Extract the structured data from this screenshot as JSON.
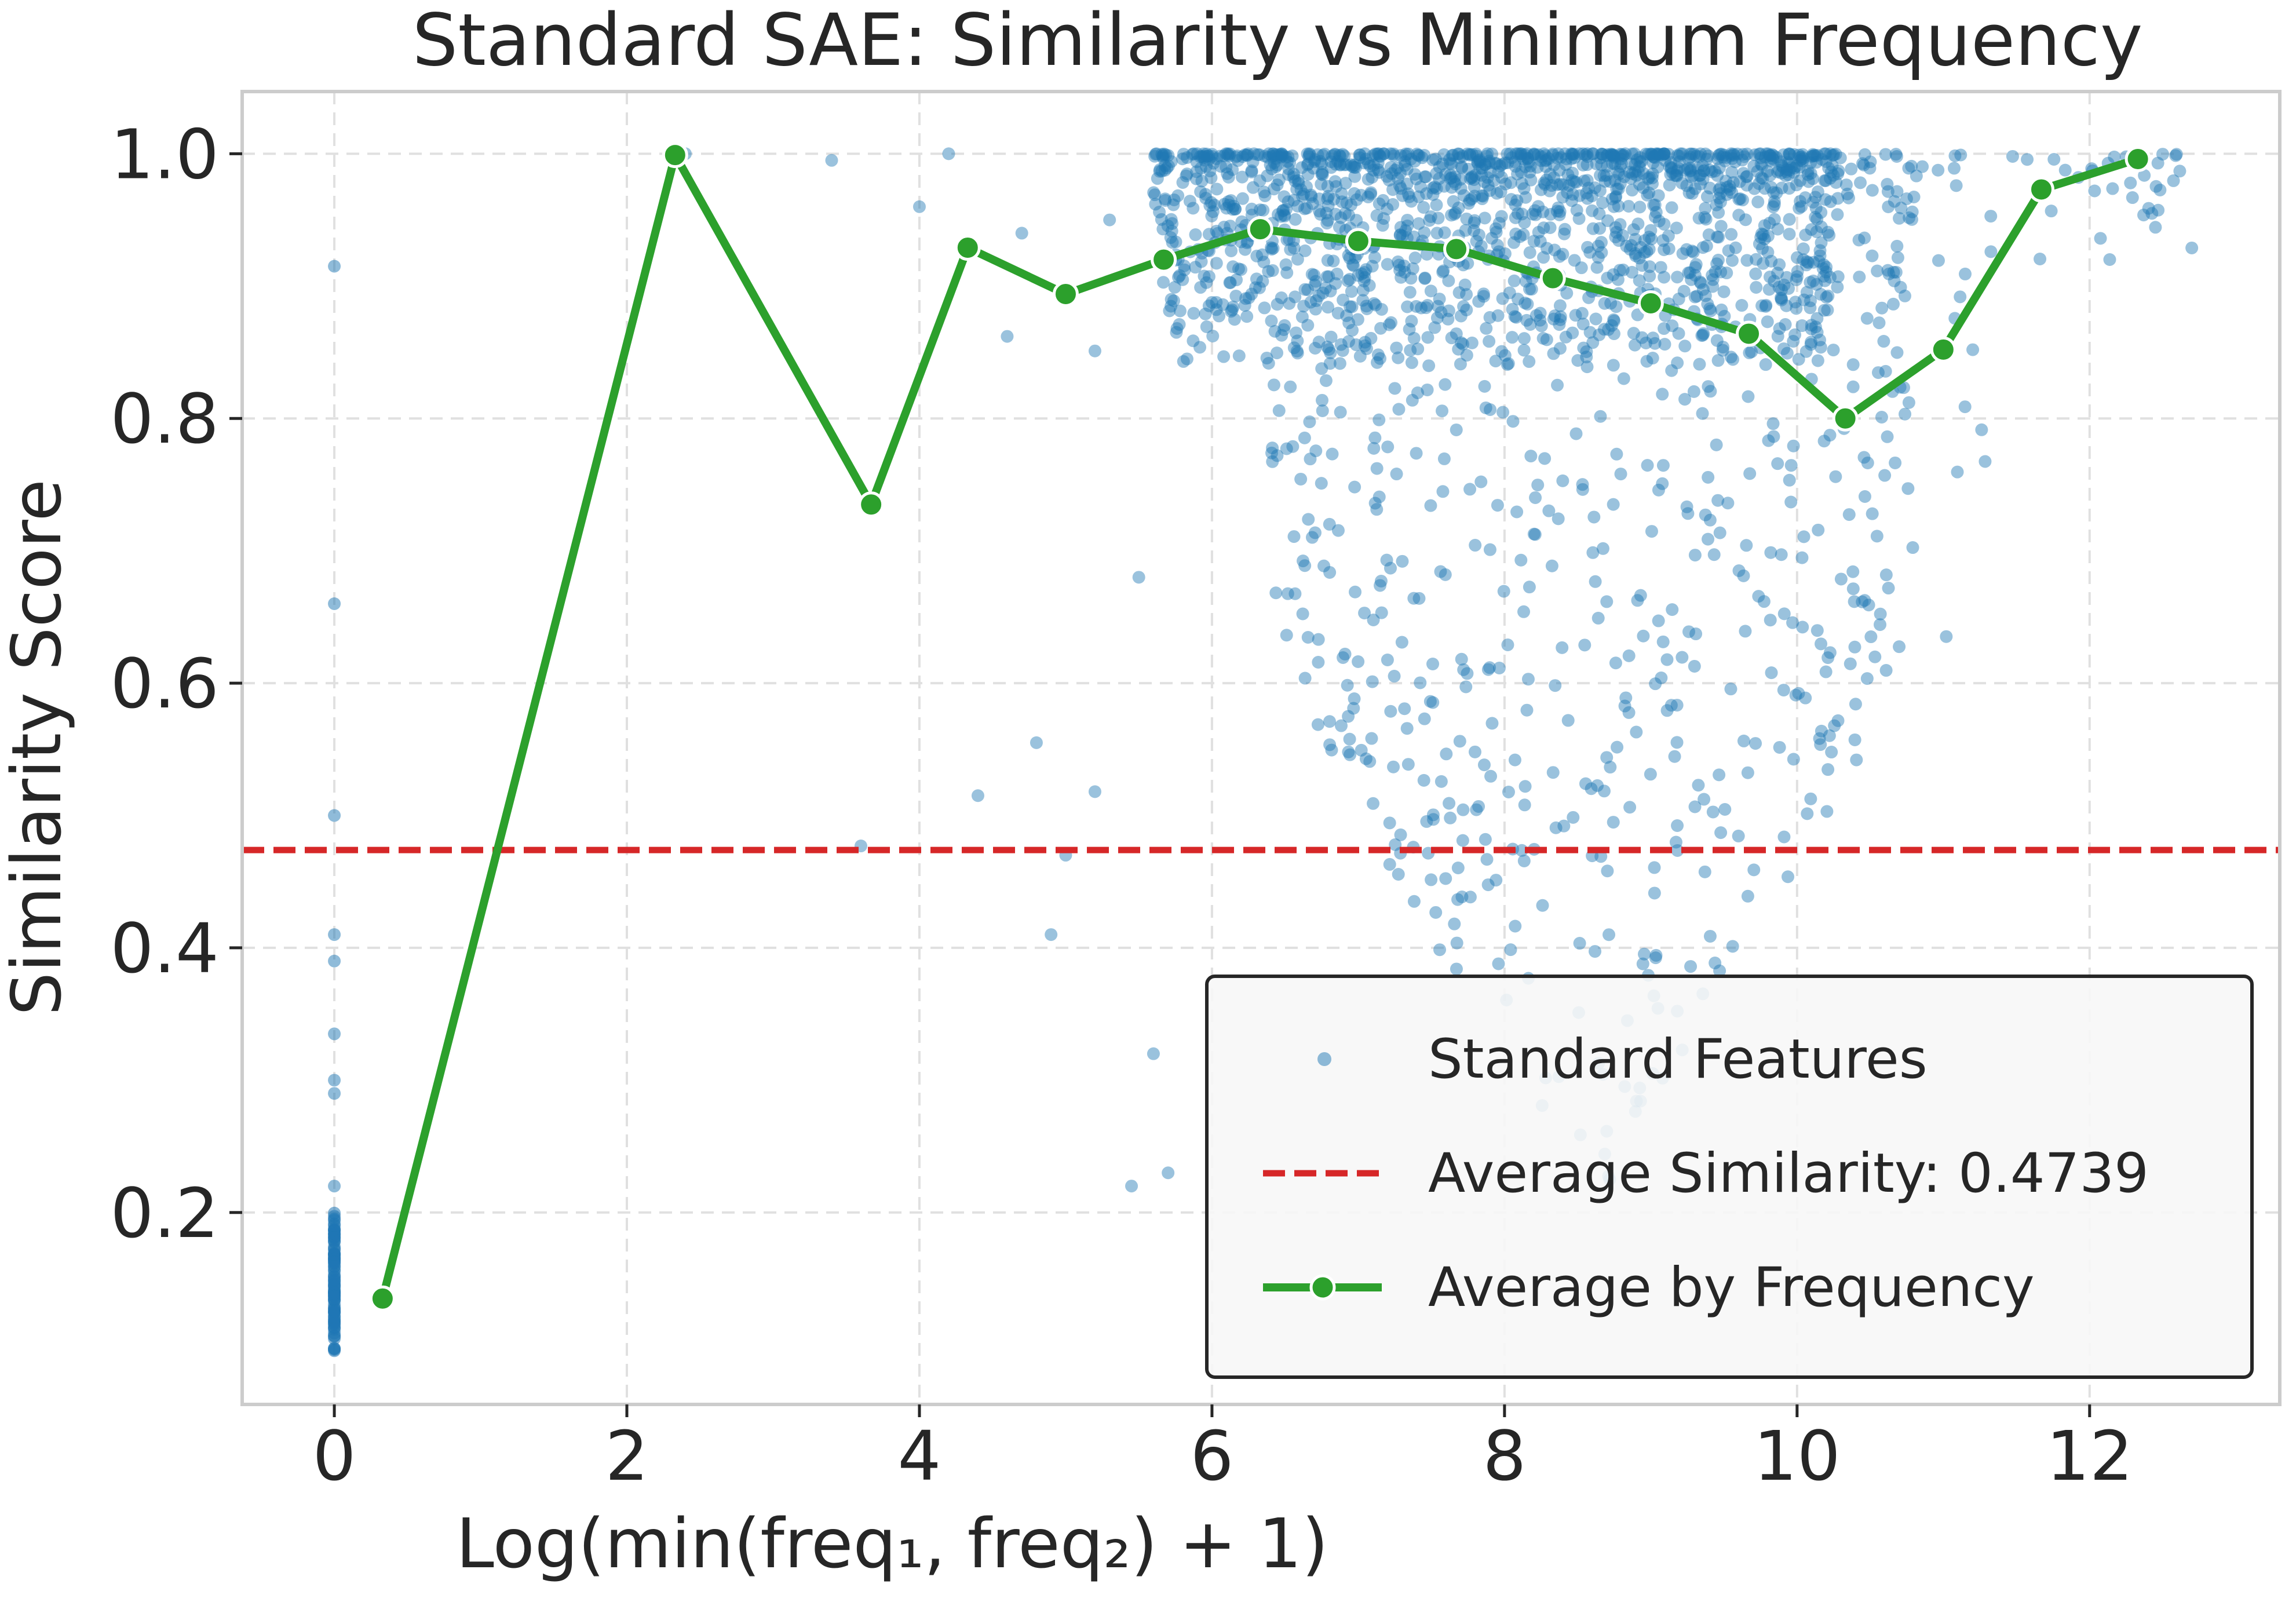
{
  "chart_data": {
    "type": "scatter",
    "title": "Standard SAE: Similarity vs Minimum Frequency",
    "xlabel": "Log(min(freq₁, freq₂) + 1)",
    "ylabel": "Similarity Score",
    "xlim": [
      -0.63,
      13.3
    ],
    "ylim": [
      0.055,
      1.047
    ],
    "xticks": [
      0,
      2,
      4,
      6,
      8,
      10,
      12
    ],
    "xtick_labels": [
      "0",
      "2",
      "4",
      "6",
      "8",
      "10",
      "12"
    ],
    "yticks": [
      0.2,
      0.4,
      0.6,
      0.8,
      1.0
    ],
    "ytick_labels": [
      "0.2",
      "0.4",
      "0.6",
      "0.8",
      "1.0"
    ],
    "grid": true,
    "legend_position": "lower-right",
    "average_similarity": 0.4739,
    "series": [
      {
        "name": "Standard Features",
        "kind": "scatter",
        "note": "approximately 10,000 points, dense band near similarity 1.0 for x between 6 and 10, spreading down to about 0.15 as x increases; a vertical cluster at x = 0 between 0.1 and 0.2",
        "zero_cluster": {
          "x": 0,
          "y_min": 0.095,
          "y_max": 0.2
        },
        "zero_outliers": [
          0.915,
          0.66,
          0.5,
          0.41,
          0.39,
          0.335,
          0.3,
          0.29,
          0.22
        ],
        "sparse_points": [
          [
            2.4,
            1.0
          ],
          [
            3.4,
            0.995
          ],
          [
            3.6,
            0.477
          ],
          [
            4.0,
            0.96
          ],
          [
            4.2,
            1.0
          ],
          [
            4.4,
            0.515
          ],
          [
            4.6,
            0.862
          ],
          [
            4.8,
            0.555
          ],
          [
            4.9,
            0.41
          ],
          [
            5.0,
            0.47
          ],
          [
            5.2,
            0.518
          ],
          [
            5.2,
            0.851
          ],
          [
            5.45,
            0.22
          ],
          [
            5.5,
            0.68
          ],
          [
            5.6,
            0.32
          ],
          [
            5.7,
            0.23
          ],
          [
            5.3,
            0.95
          ],
          [
            4.7,
            0.94
          ]
        ]
      },
      {
        "name": "Average Similarity: 0.4739",
        "kind": "hline",
        "y": 0.4739
      },
      {
        "name": "Average by Frequency",
        "kind": "line",
        "x": [
          0.33,
          2.33,
          3.67,
          4.33,
          5.0,
          5.67,
          6.33,
          7.0,
          7.67,
          8.33,
          9.0,
          9.67,
          10.33,
          11.0,
          11.67,
          12.33
        ],
        "values": [
          0.135,
          0.999,
          0.735,
          0.929,
          0.894,
          0.92,
          0.943,
          0.934,
          0.928,
          0.906,
          0.887,
          0.864,
          0.8,
          0.852,
          0.973,
          0.996
        ]
      }
    ],
    "colors": {
      "scatter": "#1f77b4",
      "average_line": "#d62728",
      "frequency_line": "#2ca02c",
      "grid": "#e0e0e0",
      "axes": "#cccccc"
    }
  },
  "legend": {
    "items": [
      "Standard Features",
      "Average Similarity: 0.4739",
      "Average by Frequency"
    ]
  }
}
